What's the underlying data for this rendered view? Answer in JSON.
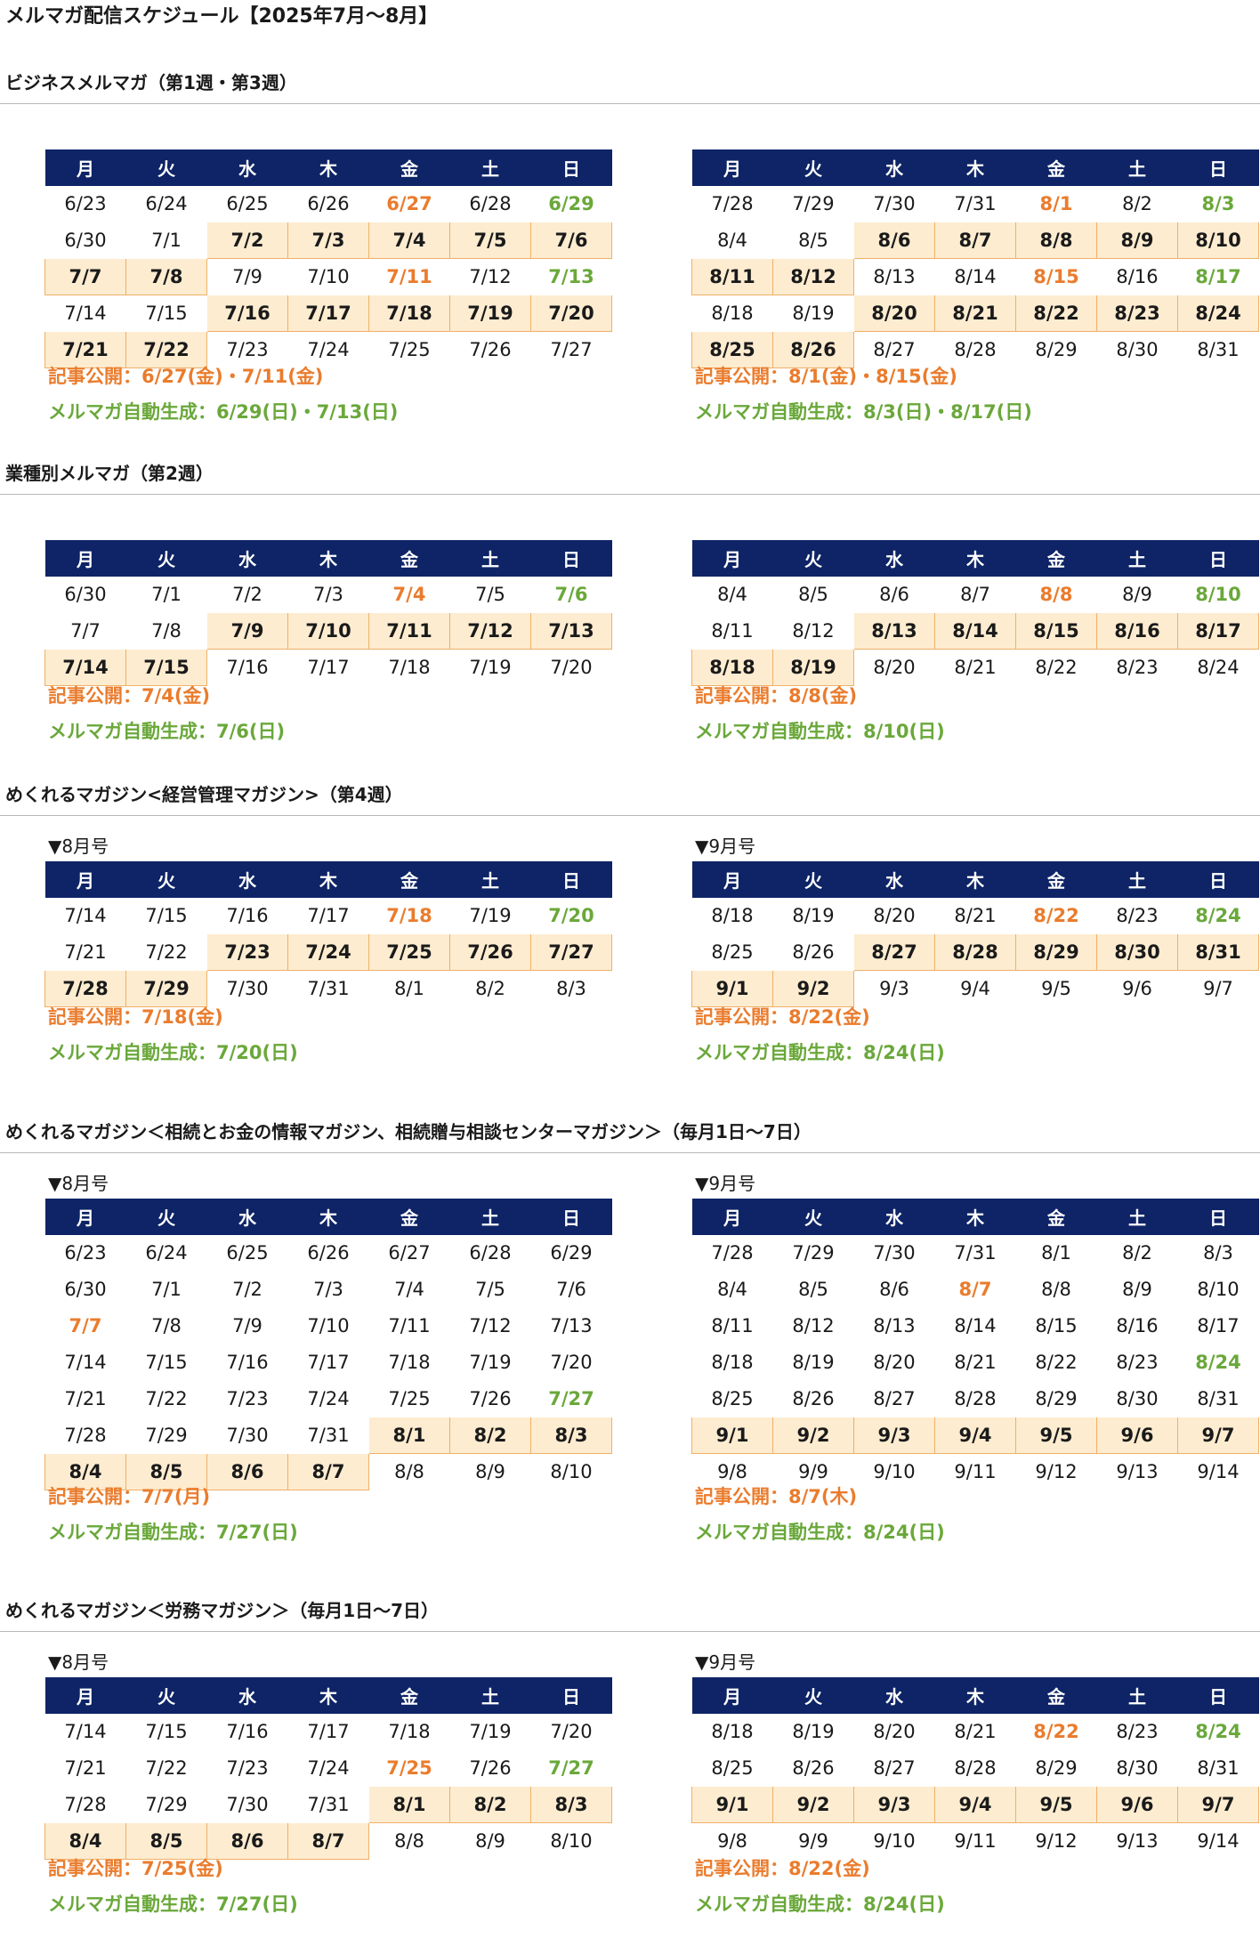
{
  "page_title": "メルマガ配信スケジュール【2025年7月～8月】",
  "colors": {
    "header_bg": "#0e2466",
    "highlight_bg": "#fdecd0",
    "highlight_border": "#f0b067",
    "publish": "#ea7c2d",
    "auto_generate": "#6aa83a"
  },
  "weekdays": [
    "月",
    "火",
    "水",
    "木",
    "金",
    "土",
    "日"
  ],
  "sections": [
    {
      "title": "ビジネスメルマガ（第1週・第3週）",
      "calendars": [
        {
          "label": "",
          "weeks": [
            [
              "6/23",
              "6/24",
              "6/25",
              "6/26",
              "6/27",
              "6/28",
              "6/29"
            ],
            [
              "6/30",
              "7/1",
              "7/2",
              "7/3",
              "7/4",
              "7/5",
              "7/6"
            ],
            [
              "7/7",
              "7/8",
              "7/9",
              "7/10",
              "7/11",
              "7/12",
              "7/13"
            ],
            [
              "7/14",
              "7/15",
              "7/16",
              "7/17",
              "7/18",
              "7/19",
              "7/20"
            ],
            [
              "7/21",
              "7/22",
              "7/23",
              "7/24",
              "7/25",
              "7/26",
              "7/27"
            ]
          ],
          "highlighted": [
            "7/2",
            "7/3",
            "7/4",
            "7/5",
            "7/6",
            "7/7",
            "7/8",
            "7/16",
            "7/17",
            "7/18",
            "7/19",
            "7/20",
            "7/21",
            "7/22"
          ],
          "publish_days": [
            "6/27",
            "7/11"
          ],
          "generate_days": [
            "6/29",
            "7/13"
          ],
          "publish_note": "記事公開：6/27(金)・7/11(金)",
          "generate_note": "メルマガ自動生成：6/29(日)・7/13(日)"
        },
        {
          "label": "",
          "weeks": [
            [
              "7/28",
              "7/29",
              "7/30",
              "7/31",
              "8/1",
              "8/2",
              "8/3"
            ],
            [
              "8/4",
              "8/5",
              "8/6",
              "8/7",
              "8/8",
              "8/9",
              "8/10"
            ],
            [
              "8/11",
              "8/12",
              "8/13",
              "8/14",
              "8/15",
              "8/16",
              "8/17"
            ],
            [
              "8/18",
              "8/19",
              "8/20",
              "8/21",
              "8/22",
              "8/23",
              "8/24"
            ],
            [
              "8/25",
              "8/26",
              "8/27",
              "8/28",
              "8/29",
              "8/30",
              "8/31"
            ]
          ],
          "highlighted": [
            "8/6",
            "8/7",
            "8/8",
            "8/9",
            "8/10",
            "8/11",
            "8/12",
            "8/20",
            "8/21",
            "8/22",
            "8/23",
            "8/24",
            "8/25",
            "8/26"
          ],
          "publish_days": [
            "8/1",
            "8/15"
          ],
          "generate_days": [
            "8/3",
            "8/17"
          ],
          "publish_note": "記事公開：8/1(金)・8/15(金)",
          "generate_note": "メルマガ自動生成：8/3(日)・8/17(日)"
        }
      ]
    },
    {
      "title": "業種別メルマガ（第2週）",
      "calendars": [
        {
          "label": "",
          "weeks": [
            [
              "6/30",
              "7/1",
              "7/2",
              "7/3",
              "7/4",
              "7/5",
              "7/6"
            ],
            [
              "7/7",
              "7/8",
              "7/9",
              "7/10",
              "7/11",
              "7/12",
              "7/13"
            ],
            [
              "7/14",
              "7/15",
              "7/16",
              "7/17",
              "7/18",
              "7/19",
              "7/20"
            ]
          ],
          "highlighted": [
            "7/9",
            "7/10",
            "7/11",
            "7/12",
            "7/13",
            "7/14",
            "7/15"
          ],
          "publish_days": [
            "7/4"
          ],
          "generate_days": [
            "7/6"
          ],
          "publish_note": "記事公開：7/4(金)",
          "generate_note": "メルマガ自動生成：7/6(日)"
        },
        {
          "label": "",
          "weeks": [
            [
              "8/4",
              "8/5",
              "8/6",
              "8/7",
              "8/8",
              "8/9",
              "8/10"
            ],
            [
              "8/11",
              "8/12",
              "8/13",
              "8/14",
              "8/15",
              "8/16",
              "8/17"
            ],
            [
              "8/18",
              "8/19",
              "8/20",
              "8/21",
              "8/22",
              "8/23",
              "8/24"
            ]
          ],
          "highlighted": [
            "8/13",
            "8/14",
            "8/15",
            "8/16",
            "8/17",
            "8/18",
            "8/19"
          ],
          "publish_days": [
            "8/8"
          ],
          "generate_days": [
            "8/10"
          ],
          "publish_note": "記事公開：8/8(金)",
          "generate_note": "メルマガ自動生成：8/10(日)"
        }
      ]
    },
    {
      "title": "めくれるマガジン<経営管理マガジン>（第4週）",
      "calendars": [
        {
          "label": "▼8月号",
          "weeks": [
            [
              "7/14",
              "7/15",
              "7/16",
              "7/17",
              "7/18",
              "7/19",
              "7/20"
            ],
            [
              "7/21",
              "7/22",
              "7/23",
              "7/24",
              "7/25",
              "7/26",
              "7/27"
            ],
            [
              "7/28",
              "7/29",
              "7/30",
              "7/31",
              "8/1",
              "8/2",
              "8/3"
            ]
          ],
          "highlighted": [
            "7/23",
            "7/24",
            "7/25",
            "7/26",
            "7/27",
            "7/28",
            "7/29"
          ],
          "publish_days": [
            "7/18"
          ],
          "generate_days": [
            "7/20"
          ],
          "publish_note": "記事公開：7/18(金)",
          "generate_note": "メルマガ自動生成：7/20(日)"
        },
        {
          "label": "▼9月号",
          "weeks": [
            [
              "8/18",
              "8/19",
              "8/20",
              "8/21",
              "8/22",
              "8/23",
              "8/24"
            ],
            [
              "8/25",
              "8/26",
              "8/27",
              "8/28",
              "8/29",
              "8/30",
              "8/31"
            ],
            [
              "9/1",
              "9/2",
              "9/3",
              "9/4",
              "9/5",
              "9/6",
              "9/7"
            ]
          ],
          "highlighted": [
            "8/27",
            "8/28",
            "8/29",
            "8/30",
            "8/31",
            "9/1",
            "9/2"
          ],
          "publish_days": [
            "8/22"
          ],
          "generate_days": [
            "8/24"
          ],
          "publish_note": "記事公開：8/22(金)",
          "generate_note": "メルマガ自動生成：8/24(日)"
        }
      ]
    },
    {
      "title": "めくれるマガジン＜相続とお金の情報マガジン、相続贈与相談センターマガジン＞（毎月1日～7日）",
      "calendars": [
        {
          "label": "▼8月号",
          "weeks": [
            [
              "6/23",
              "6/24",
              "6/25",
              "6/26",
              "6/27",
              "6/28",
              "6/29"
            ],
            [
              "6/30",
              "7/1",
              "7/2",
              "7/3",
              "7/4",
              "7/5",
              "7/6"
            ],
            [
              "7/7",
              "7/8",
              "7/9",
              "7/10",
              "7/11",
              "7/12",
              "7/13"
            ],
            [
              "7/14",
              "7/15",
              "7/16",
              "7/17",
              "7/18",
              "7/19",
              "7/20"
            ],
            [
              "7/21",
              "7/22",
              "7/23",
              "7/24",
              "7/25",
              "7/26",
              "7/27"
            ],
            [
              "7/28",
              "7/29",
              "7/30",
              "7/31",
              "8/1",
              "8/2",
              "8/3"
            ],
            [
              "8/4",
              "8/5",
              "8/6",
              "8/7",
              "8/8",
              "8/9",
              "8/10"
            ]
          ],
          "highlighted": [
            "8/1",
            "8/2",
            "8/3",
            "8/4",
            "8/5",
            "8/6",
            "8/7"
          ],
          "publish_days": [
            "7/7"
          ],
          "generate_days": [
            "7/27"
          ],
          "publish_note": "記事公開：7/7(月)",
          "generate_note": "メルマガ自動生成：7/27(日)"
        },
        {
          "label": "▼9月号",
          "weeks": [
            [
              "7/28",
              "7/29",
              "7/30",
              "7/31",
              "8/1",
              "8/2",
              "8/3"
            ],
            [
              "8/4",
              "8/5",
              "8/6",
              "8/7",
              "8/8",
              "8/9",
              "8/10"
            ],
            [
              "8/11",
              "8/12",
              "8/13",
              "8/14",
              "8/15",
              "8/16",
              "8/17"
            ],
            [
              "8/18",
              "8/19",
              "8/20",
              "8/21",
              "8/22",
              "8/23",
              "8/24"
            ],
            [
              "8/25",
              "8/26",
              "8/27",
              "8/28",
              "8/29",
              "8/30",
              "8/31"
            ],
            [
              "9/1",
              "9/2",
              "9/3",
              "9/4",
              "9/5",
              "9/6",
              "9/7"
            ],
            [
              "9/8",
              "9/9",
              "9/10",
              "9/11",
              "9/12",
              "9/13",
              "9/14"
            ]
          ],
          "highlighted": [
            "9/1",
            "9/2",
            "9/3",
            "9/4",
            "9/5",
            "9/6",
            "9/7"
          ],
          "publish_days": [
            "8/7"
          ],
          "generate_days": [
            "8/24"
          ],
          "publish_note": "記事公開：8/7(木)",
          "generate_note": "メルマガ自動生成：8/24(日)"
        }
      ]
    },
    {
      "title": "めくれるマガジン＜労務マガジン＞（毎月1日～7日）",
      "calendars": [
        {
          "label": "▼8月号",
          "weeks": [
            [
              "7/14",
              "7/15",
              "7/16",
              "7/17",
              "7/18",
              "7/19",
              "7/20"
            ],
            [
              "7/21",
              "7/22",
              "7/23",
              "7/24",
              "7/25",
              "7/26",
              "7/27"
            ],
            [
              "7/28",
              "7/29",
              "7/30",
              "7/31",
              "8/1",
              "8/2",
              "8/3"
            ],
            [
              "8/4",
              "8/5",
              "8/6",
              "8/7",
              "8/8",
              "8/9",
              "8/10"
            ]
          ],
          "highlighted": [
            "8/1",
            "8/2",
            "8/3",
            "8/4",
            "8/5",
            "8/6",
            "8/7"
          ],
          "publish_days": [
            "7/25"
          ],
          "generate_days": [
            "7/27"
          ],
          "publish_note": "記事公開：7/25(金)",
          "generate_note": "メルマガ自動生成：7/27(日)"
        },
        {
          "label": "▼9月号",
          "weeks": [
            [
              "8/18",
              "8/19",
              "8/20",
              "8/21",
              "8/22",
              "8/23",
              "8/24"
            ],
            [
              "8/25",
              "8/26",
              "8/27",
              "8/28",
              "8/29",
              "8/30",
              "8/31"
            ],
            [
              "9/1",
              "9/2",
              "9/3",
              "9/4",
              "9/5",
              "9/6",
              "9/7"
            ],
            [
              "9/8",
              "9/9",
              "9/10",
              "9/11",
              "9/12",
              "9/13",
              "9/14"
            ]
          ],
          "highlighted": [
            "9/1",
            "9/2",
            "9/3",
            "9/4",
            "9/5",
            "9/6",
            "9/7"
          ],
          "publish_days": [
            "8/22"
          ],
          "generate_days": [
            "8/24"
          ],
          "publish_note": "記事公開：8/22(金)",
          "generate_note": "メルマガ自動生成：8/24(日)"
        }
      ]
    }
  ]
}
